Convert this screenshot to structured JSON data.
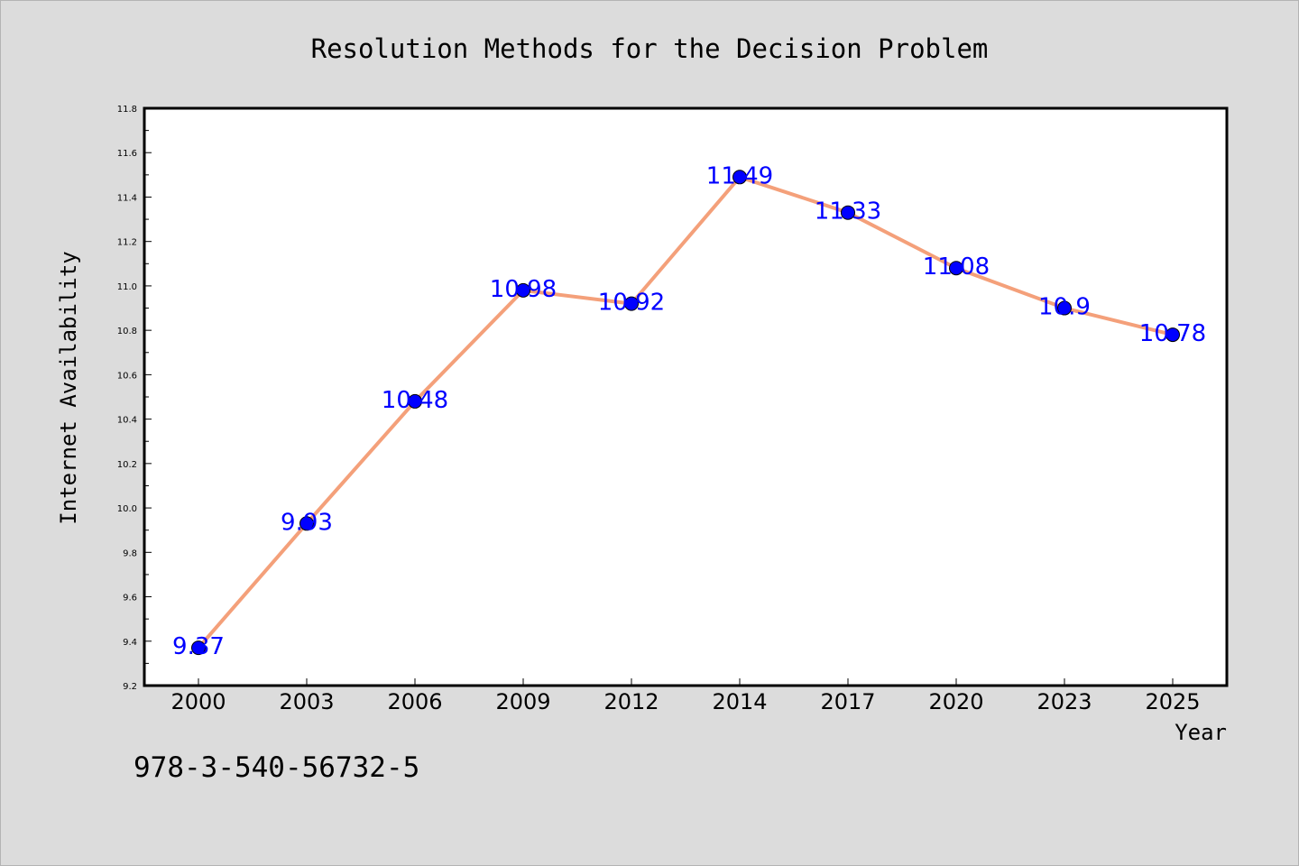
{
  "chart_data": {
    "type": "line",
    "title": "Resolution Methods for the Decision Problem",
    "xlabel": "Year",
    "ylabel": "Internet Availability",
    "categories": [
      "2000",
      "2003",
      "2006",
      "2009",
      "2012",
      "2014",
      "2017",
      "2020",
      "2023",
      "2025"
    ],
    "series": [
      {
        "values": [
          9.37,
          9.93,
          10.48,
          10.98,
          10.92,
          11.49,
          11.33,
          11.08,
          10.9,
          10.78
        ]
      }
    ],
    "data_labels": [
      "9.37",
      "9.93",
      "10.48",
      "10.98",
      "10.92",
      "11.49",
      "11.33",
      "11.08",
      "10.9",
      "10.78"
    ],
    "ylim": [
      9.2,
      11.8
    ],
    "yticks": [
      "9.2",
      "9.4",
      "9.6",
      "9.8",
      "10.0",
      "10.2",
      "10.4",
      "10.6",
      "10.8",
      "11.0",
      "11.2",
      "11.4",
      "11.6",
      "11.8"
    ],
    "grid": false,
    "legend": "none",
    "colors": {
      "line": "#f4a07a",
      "marker": "#0000ff",
      "data_label": "#0000ff",
      "plot_background": "#ffffff",
      "page_background": "#dcdcdc"
    }
  },
  "footnote": "978-3-540-56732-5"
}
